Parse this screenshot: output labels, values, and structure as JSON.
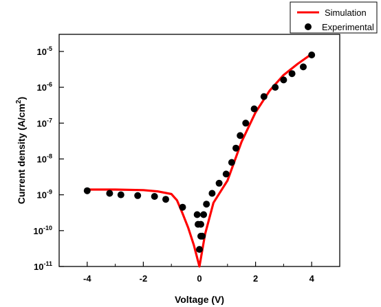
{
  "chart_data": {
    "type": "line",
    "xlabel": "Voltage (V)",
    "ylabel": "Current density (A/cm2)",
    "ylabel_parts": {
      "main": "Current density (A/cm",
      "sup": "2",
      "end": ")"
    },
    "xlim": [
      -5,
      5
    ],
    "ylim": [
      1e-11,
      3e-05
    ],
    "yscale": "log",
    "x_ticks": [
      -4,
      -2,
      0,
      2,
      4
    ],
    "x_tick_labels": [
      "-4",
      "-2",
      "0",
      "2",
      "4"
    ],
    "y_ticks": [
      {
        "value": 1e-11,
        "base": "10",
        "exp": "-11"
      },
      {
        "value": 1e-10,
        "base": "10",
        "exp": "-10"
      },
      {
        "value": 1e-09,
        "base": "10",
        "exp": "-9"
      },
      {
        "value": 1e-08,
        "base": "10",
        "exp": "-8"
      },
      {
        "value": 1e-07,
        "base": "10",
        "exp": "-7"
      },
      {
        "value": 1e-06,
        "base": "10",
        "exp": "-6"
      },
      {
        "value": 1e-05,
        "base": "10",
        "exp": "-5"
      }
    ],
    "legend_position": "top-right",
    "series": [
      {
        "name": "Simulation",
        "style": "line",
        "color": "#ff0000",
        "x": [
          -4.0,
          -3.0,
          -2.0,
          -1.5,
          -1.0,
          -0.8,
          -0.6,
          -0.4,
          -0.2,
          0.0,
          0.2,
          0.5,
          1.0,
          1.5,
          2.0,
          2.5,
          3.0,
          3.5,
          4.0
        ],
        "y": [
          1.4e-09,
          1.4e-09,
          1.35e-09,
          1.25e-09,
          1.05e-09,
          7e-10,
          3e-10,
          1.2e-10,
          4e-11,
          1e-11,
          8e-11,
          6e-10,
          2.5e-09,
          3e-08,
          2e-07,
          8e-07,
          2.2e-06,
          4.5e-06,
          8.5e-06
        ]
      },
      {
        "name": "Experimental",
        "style": "scatter",
        "color": "#000000",
        "x": [
          -4.0,
          -3.2,
          -2.8,
          -2.2,
          -1.6,
          -1.2,
          -0.6,
          -0.08,
          0.05,
          -0.05,
          0.1,
          0.0,
          0.05,
          0.15,
          0.25,
          0.45,
          0.7,
          0.95,
          1.15,
          1.3,
          1.45,
          1.65,
          1.95,
          2.3,
          2.7,
          3.0,
          3.3,
          3.7,
          4.0
        ],
        "y": [
          1.3e-09,
          1.1e-09,
          1e-09,
          9.5e-10,
          9e-10,
          7.5e-10,
          4.5e-10,
          2.8e-10,
          1.5e-10,
          1.5e-10,
          7e-11,
          3e-11,
          7e-11,
          2.8e-10,
          5.5e-10,
          1.1e-09,
          2.1e-09,
          3.8e-09,
          8e-09,
          2e-08,
          4.5e-08,
          1e-07,
          2.5e-07,
          5.5e-07,
          1e-06,
          1.6e-06,
          2.4e-06,
          3.7e-06,
          8e-06
        ]
      }
    ]
  }
}
